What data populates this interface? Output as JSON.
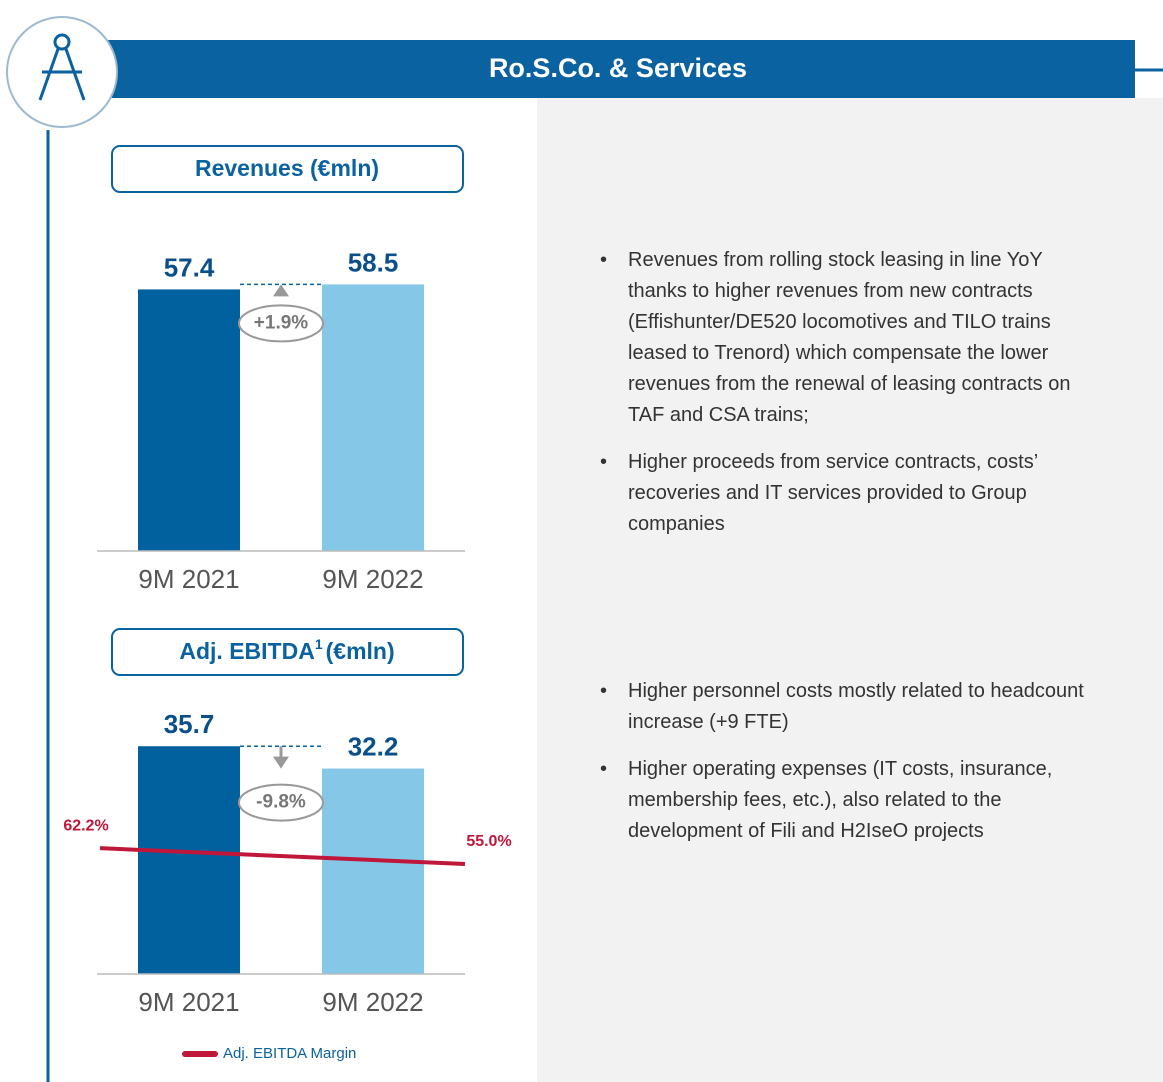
{
  "header": {
    "title": "Ro.S.Co. & Services"
  },
  "chart_data": [
    {
      "type": "bar",
      "title": "Revenues (€mln)",
      "categories": [
        "9M 2021",
        "9M 2022"
      ],
      "series": [
        {
          "values": [
            57.4,
            58.5
          ],
          "colors": [
            "#00619e",
            "#85c7e6"
          ]
        }
      ],
      "annotation": "+1.9%",
      "ylim": [
        0,
        70
      ]
    },
    {
      "type": "bar",
      "title": "Adj. EBITDA",
      "title_superscript": "1",
      "title_suffix": "(€mln)",
      "categories": [
        "9M 2021",
        "9M 2022"
      ],
      "series": [
        {
          "values": [
            35.7,
            32.2
          ],
          "colors": [
            "#00619e",
            "#85c7e6"
          ]
        },
        {
          "name": "Adj. EBITDA Margin",
          "type": "line",
          "axis": "y2",
          "color": "#c0163a",
          "values": [
            62.2,
            55.0
          ],
          "value_labels": [
            "62.2%",
            "55.0%"
          ]
        }
      ],
      "annotation": "-9.8%",
      "ylim": [
        0,
        50
      ],
      "y2lim": [
        5,
        150
      ]
    }
  ],
  "bullets": [
    [
      "Revenues from rolling stock leasing in line YoY thanks to higher revenues from new contracts (Effishunter/DE520 locomotives and TILO trains leased to Trenord) which compensate the lower revenues from the renewal of leasing contracts on TAF and CSA trains;",
      "Higher proceeds from service contracts, costs’ recoveries and IT services provided to Group companies"
    ],
    [
      "Higher personnel costs mostly related to headcount increase (+9 FTE)",
      "Higher operating expenses (IT costs, insurance, membership fees, etc.), also related to the development of Fili and H2IseO projects"
    ]
  ]
}
